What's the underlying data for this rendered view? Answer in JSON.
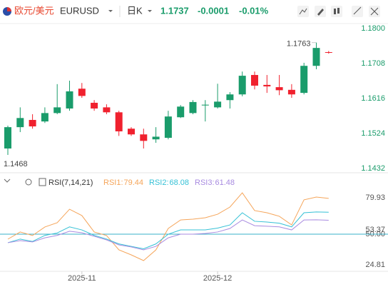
{
  "header": {
    "pair": "欧元/美元",
    "symbol": "EURUSD",
    "period": "日K",
    "change": "-0.0001",
    "change_pct": "-0.01%"
  },
  "chart_data": [
    {
      "type": "candlestick",
      "categories": [
        null,
        null,
        null,
        null,
        null,
        null,
        "2025-11",
        null,
        null,
        null,
        null,
        null,
        null,
        null,
        null,
        null,
        null,
        "2025-12",
        null,
        null,
        null,
        null,
        null,
        null,
        null,
        null,
        null
      ],
      "open": [
        1.1485,
        1.1541,
        1.156,
        1.1556,
        1.1578,
        1.159,
        1.1642,
        1.1605,
        1.1593,
        1.158,
        1.1537,
        1.1522,
        1.1509,
        1.1513,
        1.1567,
        1.1578,
        1.1598,
        1.1593,
        1.1612,
        1.1627,
        1.1678,
        1.1652,
        1.1646,
        1.1639,
        1.1631,
        1.1702,
        1.1738
      ],
      "high": [
        1.1545,
        1.1593,
        1.1575,
        1.1593,
        1.1654,
        1.1663,
        1.1657,
        1.1612,
        1.1601,
        1.1584,
        1.1541,
        1.1537,
        1.1541,
        1.1584,
        1.1599,
        1.1612,
        1.1612,
        1.1655,
        1.1633,
        1.1687,
        1.1687,
        1.1678,
        1.1678,
        1.1654,
        1.171,
        1.1763,
        1.1741
      ],
      "low": [
        1.1468,
        1.1528,
        1.1537,
        1.1552,
        1.1575,
        1.1584,
        1.1618,
        1.1584,
        1.1575,
        1.1518,
        1.1518,
        1.1485,
        1.15,
        1.1509,
        1.1565,
        1.1575,
        1.1556,
        1.159,
        1.159,
        1.1622,
        1.164,
        1.1631,
        1.1625,
        1.1618,
        1.1627,
        1.1693,
        1.1734
      ],
      "close": [
        1.1541,
        1.1565,
        1.1543,
        1.1578,
        1.1593,
        1.1635,
        1.1623,
        1.159,
        1.158,
        1.153,
        1.1522,
        1.1505,
        1.1516,
        1.1569,
        1.1595,
        1.1607,
        1.16,
        1.1608,
        1.1627,
        1.1676,
        1.165,
        1.1648,
        1.1638,
        1.1627,
        1.1702,
        1.1749,
        1.1737
      ],
      "up_color": "#1a9c6b",
      "down_color": "#f0212e",
      "ylim": [
        1.1425,
        1.1813
      ],
      "yticks": [
        {
          "value": 1.18,
          "label": "1.1800"
        },
        1.1708,
        1.1616,
        1.1524,
        1.1432
      ]
    },
    {
      "type": "line",
      "title": "RSI(7,14,21)",
      "series": [
        {
          "name": "RSI1",
          "color": "#f5a55a",
          "values": [
            45.9,
            51.8,
            48.9,
            55.9,
            59.4,
            70.5,
            65.3,
            51.8,
            48.9,
            37.1,
            33.0,
            28.3,
            37.1,
            54.7,
            61.7,
            62.3,
            63.5,
            66.4,
            72.3,
            84.0,
            69.4,
            67.6,
            64.7,
            57.6,
            78.2,
            80.5,
            79.44
          ]
        },
        {
          "name": "RSI2",
          "color": "#35c1d6",
          "values": [
            43,
            46,
            44,
            49,
            51,
            56,
            53.5,
            49,
            46,
            42,
            40,
            38,
            42,
            50,
            53.5,
            53.5,
            53.5,
            55,
            57.6,
            67.6,
            60.6,
            60,
            59,
            56,
            67.6,
            68.3,
            68.08
          ]
        },
        {
          "name": "RSI3",
          "color": "#a88be0",
          "values": [
            43,
            44.7,
            43.6,
            47,
            49,
            52.4,
            51.2,
            48.3,
            45.3,
            41.2,
            39.5,
            37.1,
            40,
            47,
            50,
            50,
            50.6,
            51.8,
            54.7,
            61.7,
            57,
            56.5,
            56,
            53.5,
            61.7,
            61.8,
            61.48
          ]
        }
      ],
      "ylim": [
        19.5,
        98.7
      ],
      "yticks": [
        79.93,
        53.37,
        {
          "value": 50,
          "label": "50.00"
        },
        24.81
      ]
    }
  ]
}
